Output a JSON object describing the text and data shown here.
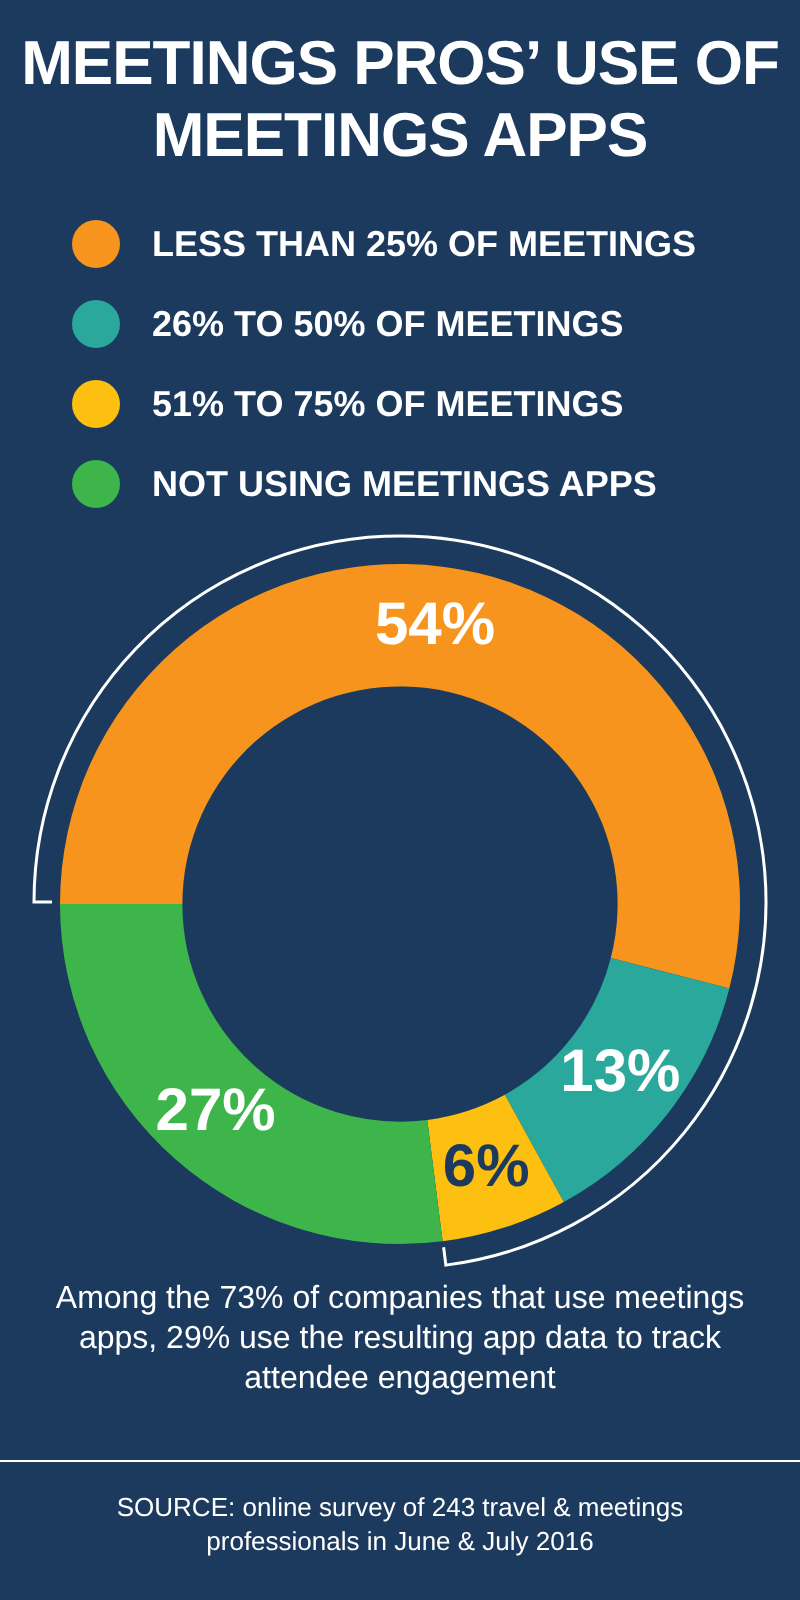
{
  "chart_data": {
    "type": "donut",
    "title": "MEETINGS PROS’ USE OF MEETINGS APPS",
    "categories": [
      "LESS THAN 25% OF MEETINGS",
      "26% TO 50% OF MEETINGS",
      "51% TO 75% OF MEETINGS",
      "NOT USING MEETINGS APPS"
    ],
    "values": [
      54,
      13,
      6,
      27
    ],
    "value_labels": [
      "54%",
      "13%",
      "6%",
      "27%"
    ],
    "colors": [
      "#f7941d",
      "#2aa89b",
      "#fdc010",
      "#3db54a"
    ],
    "legend": "top",
    "annotations": [
      "Among the 73% of companies that use meetings apps, 29% use the resulting app data to track attendee engagement",
      "SOURCE: online survey of 243 travel & meetings professionals in June & July 2016"
    ]
  }
}
